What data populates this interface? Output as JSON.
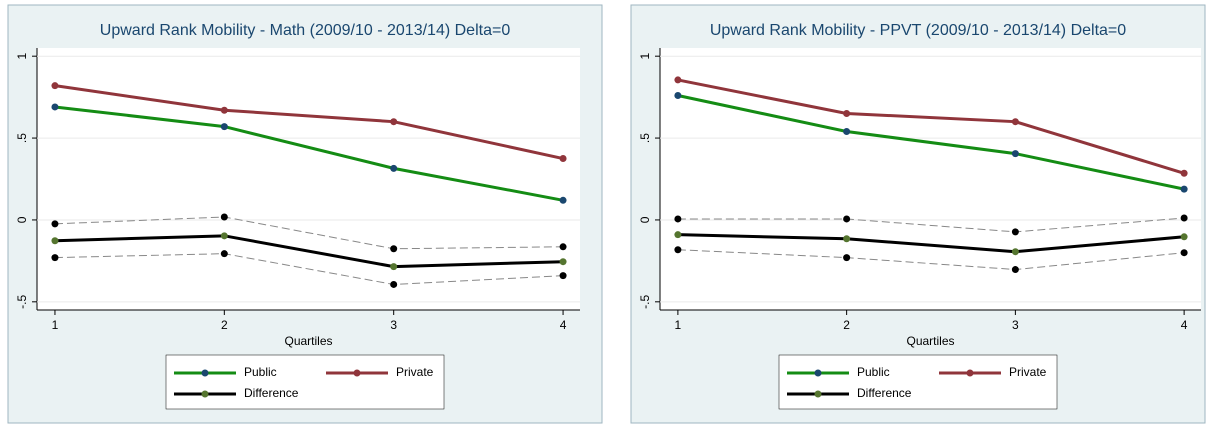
{
  "chart_data": [
    {
      "type": "line",
      "title": "Upward Rank Mobility - Math (2009/10 - 2013/14) Delta=0",
      "x_label": "Quartiles",
      "x": [
        1,
        2,
        3,
        4
      ],
      "xlim": [
        0.894,
        4.1
      ],
      "xticks": [
        1,
        2,
        3,
        4
      ],
      "ylim": [
        -0.55,
        1.05
      ],
      "yticks": [
        {
          "value": -0.5,
          "label": "-.5"
        },
        0,
        {
          "value": 0.5,
          "label": ".5"
        },
        1
      ],
      "grid": true,
      "series": [
        {
          "name": "Public",
          "color": "#148c14",
          "marker_color": "#1a476f",
          "values": [
            0.69,
            0.57,
            0.315,
            0.12
          ]
        },
        {
          "name": "Private",
          "color": "#90353b",
          "marker_color": "#90353b",
          "values": [
            0.82,
            0.67,
            0.6,
            0.375
          ]
        },
        {
          "name": "Difference",
          "color": "#000000",
          "marker_color": "#55752f",
          "values": [
            -0.127,
            -0.097,
            -0.285,
            -0.255
          ]
        },
        {
          "color": "#888888",
          "marker_color": "#000000",
          "dash": true,
          "values": [
            -0.024,
            0.018,
            -0.176,
            -0.164
          ]
        },
        {
          "color": "#888888",
          "marker_color": "#000000",
          "dash": true,
          "values": [
            -0.23,
            -0.206,
            -0.394,
            -0.34
          ]
        }
      ]
    },
    {
      "type": "line",
      "title": "Upward Rank Mobility - PPVT (2009/10 - 2013/14) Delta=0",
      "x_label": "Quartiles",
      "x": [
        1,
        2,
        3,
        4
      ],
      "xlim": [
        0.894,
        4.1
      ],
      "xticks": [
        1,
        2,
        3,
        4
      ],
      "ylim": [
        -0.55,
        1.05
      ],
      "yticks": [
        {
          "value": -0.5,
          "label": "-.5"
        },
        0,
        {
          "value": 0.5,
          "label": ".5"
        },
        1
      ],
      "grid": true,
      "series": [
        {
          "name": "Public",
          "color": "#148c14",
          "marker_color": "#1a476f",
          "values": [
            0.76,
            0.54,
            0.405,
            0.188
          ]
        },
        {
          "name": "Private",
          "color": "#90353b",
          "marker_color": "#90353b",
          "values": [
            0.855,
            0.65,
            0.6,
            0.285
          ]
        },
        {
          "name": "Difference",
          "color": "#000000",
          "marker_color": "#55752f",
          "values": [
            -0.09,
            -0.115,
            -0.194,
            -0.103
          ]
        },
        {
          "color": "#888888",
          "marker_color": "#000000",
          "dash": true,
          "values": [
            0.006,
            0.006,
            -0.073,
            0.012
          ]
        },
        {
          "color": "#888888",
          "marker_color": "#000000",
          "dash": true,
          "values": [
            -0.182,
            -0.23,
            -0.303,
            -0.2
          ]
        }
      ]
    }
  ]
}
